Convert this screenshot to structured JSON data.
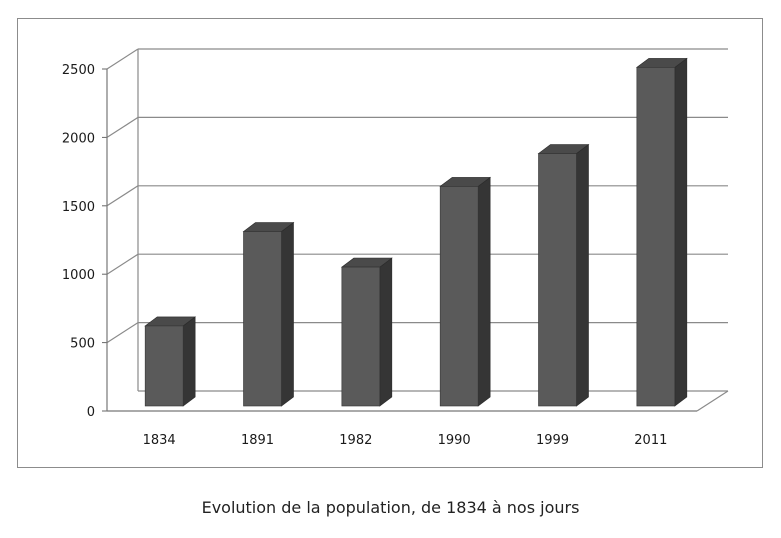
{
  "caption": "Evolution de la population, de 1834 à nos jours",
  "chart_data": {
    "type": "bar",
    "style": "3d-column",
    "categories": [
      "1834",
      "1891",
      "1982",
      "1990",
      "1999",
      "2011"
    ],
    "values": [
      600,
      1290,
      1030,
      1620,
      1860,
      2490
    ],
    "ylim": [
      0,
      2500
    ],
    "yticks": [
      0,
      500,
      1000,
      1500,
      2000,
      2500
    ],
    "grid": true,
    "legend": "none",
    "bar_color": "#5a5a5a"
  }
}
